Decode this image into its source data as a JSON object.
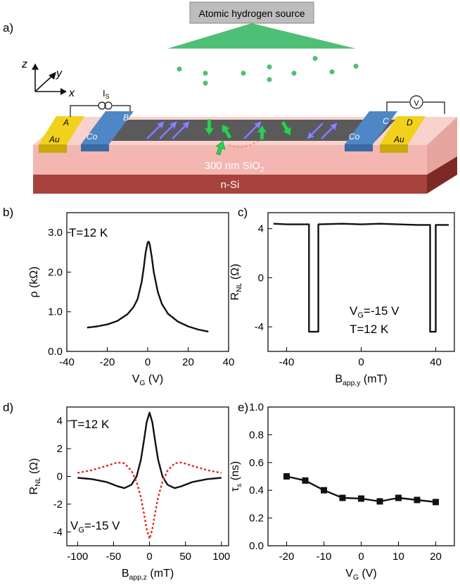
{
  "panel_a": {
    "label": "a)",
    "source_label": "Atomic hydrogen source",
    "axis_z": "z",
    "axis_y": "y",
    "axis_x": "x",
    "current_label": "I",
    "current_sub": "S",
    "voltmeter": "V",
    "electrodes": {
      "A": "A",
      "B": "B",
      "C": "C",
      "D": "D"
    },
    "au_left": "Au",
    "au_right": "Au",
    "co_left": "Co",
    "co_right": "Co",
    "oxide_text": "300 nm SiO",
    "oxide_sub": "2",
    "substrate": "n-Si"
  },
  "panel_b": {
    "label": "b)",
    "annotation": "T=12 K"
  },
  "panel_c": {
    "label": "c)",
    "annotation1": "V",
    "annotation1_sub": "G",
    "annotation1_rest": "=-15 V",
    "annotation2": "T=12 K"
  },
  "panel_d": {
    "label": "d)",
    "annotation1": "T=12 K",
    "annotation2": "V",
    "annotation2_sub": "G",
    "annotation2_rest": "=-15 V"
  },
  "panel_e": {
    "label": "e)"
  },
  "chart_data": [
    {
      "panel": "b",
      "type": "line",
      "xlabel": "V",
      "xlabel_sub": "G",
      "xlabel_unit": " (V)",
      "ylabel": "ρ (kΩ)",
      "xlim": [
        -40,
        40
      ],
      "ylim": [
        0.0,
        3.5
      ],
      "xticks": [
        -40,
        -20,
        0,
        20,
        40
      ],
      "yticks": [
        0.0,
        1.0,
        2.0,
        3.0
      ],
      "ytick_labels": [
        "0.0",
        "1.0",
        "2.0",
        "3.0"
      ],
      "series": [
        {
          "color": "#111111",
          "dash": "",
          "x": [
            -30,
            -25,
            -20,
            -15,
            -10,
            -7,
            -5,
            -3,
            -2,
            -1,
            0,
            0.5,
            1,
            2,
            3,
            5,
            7,
            10,
            15,
            20,
            25,
            30
          ],
          "y": [
            0.6,
            0.63,
            0.68,
            0.77,
            0.94,
            1.12,
            1.32,
            1.75,
            2.1,
            2.5,
            2.75,
            2.77,
            2.7,
            2.38,
            2.0,
            1.5,
            1.2,
            0.95,
            0.75,
            0.63,
            0.55,
            0.5
          ]
        }
      ]
    },
    {
      "panel": "c",
      "type": "line",
      "xlabel": "B",
      "xlabel_sub": "app,y",
      "xlabel_unit": " (mT)",
      "ylabel": "R",
      "ylabel_sub": "NL",
      "ylabel_unit": " (Ω)",
      "xlim": [
        -50,
        50
      ],
      "ylim": [
        -6,
        5.3
      ],
      "xticks": [
        -40,
        0,
        40
      ],
      "yticks": [
        -4,
        0,
        4
      ],
      "ytick_labels": [
        "-4",
        "0",
        "4"
      ],
      "series": [
        {
          "color": "#111111",
          "dash": "",
          "x": [
            -47,
            -40,
            -30,
            -28,
            -28,
            -23,
            -23,
            -10,
            0,
            10,
            30,
            37,
            37,
            40,
            40,
            47
          ],
          "y": [
            4.4,
            4.35,
            4.35,
            4.35,
            -4.4,
            -4.4,
            4.35,
            4.4,
            4.35,
            4.4,
            4.3,
            4.3,
            -4.4,
            -4.4,
            4.3,
            4.3
          ]
        }
      ]
    },
    {
      "panel": "d",
      "type": "line",
      "xlabel": "B",
      "xlabel_sub": "app,z",
      "xlabel_unit": " (mT)",
      "ylabel": "R",
      "ylabel_sub": "NL",
      "ylabel_unit": " (Ω)",
      "xlim": [
        -115,
        110
      ],
      "ylim": [
        -5,
        5
      ],
      "xticks": [
        -100,
        -50,
        0,
        50,
        100
      ],
      "yticks": [
        -4,
        -2,
        0,
        2,
        4
      ],
      "ytick_labels": [
        "-4",
        "-2",
        "0",
        "2",
        "4"
      ],
      "series": [
        {
          "color": "#111111",
          "dash": "",
          "x": [
            -100,
            -80,
            -60,
            -45,
            -35,
            -25,
            -18,
            -12,
            -8,
            -4,
            0,
            4,
            8,
            12,
            18,
            25,
            35,
            45,
            60,
            80,
            100
          ],
          "y": [
            -0.1,
            -0.2,
            -0.4,
            -0.7,
            -0.85,
            -0.6,
            0.0,
            1.2,
            2.5,
            3.9,
            4.6,
            3.9,
            2.5,
            1.2,
            0.0,
            -0.6,
            -0.85,
            -0.7,
            -0.4,
            -0.2,
            -0.1
          ]
        },
        {
          "color": "#e8261e",
          "dash": "3,3",
          "x": [
            -100,
            -80,
            -60,
            -45,
            -35,
            -25,
            -18,
            -12,
            -8,
            -4,
            0,
            4,
            8,
            12,
            18,
            25,
            35,
            45,
            60,
            80,
            100
          ],
          "y": [
            0.25,
            0.45,
            0.75,
            1.0,
            0.95,
            0.4,
            -0.4,
            -1.5,
            -2.6,
            -3.8,
            -4.5,
            -3.8,
            -2.6,
            -1.5,
            -0.4,
            0.4,
            0.95,
            1.0,
            0.75,
            0.45,
            0.25
          ]
        }
      ]
    },
    {
      "panel": "e",
      "type": "line",
      "xlabel": "V",
      "xlabel_sub": "G",
      "xlabel_unit": " (V)",
      "ylabel": "τ",
      "ylabel_sub": "s",
      "ylabel_unit": " (ns)",
      "xlim": [
        -25,
        25
      ],
      "ylim": [
        0.0,
        1.0
      ],
      "xticks": [
        -20,
        -10,
        0,
        10,
        20
      ],
      "yticks": [
        0.0,
        0.2,
        0.4,
        0.6,
        0.8,
        1.0
      ],
      "ytick_labels": [
        "0.0",
        "0.2",
        "0.4",
        "0.6",
        "0.8",
        "1.0"
      ],
      "series": [
        {
          "color": "#111111",
          "dash": "",
          "markers": true,
          "x": [
            -20,
            -15,
            -10,
            -5,
            0,
            5,
            10,
            15,
            20
          ],
          "y": [
            0.5,
            0.47,
            0.4,
            0.345,
            0.34,
            0.32,
            0.345,
            0.33,
            0.315
          ]
        }
      ]
    }
  ]
}
